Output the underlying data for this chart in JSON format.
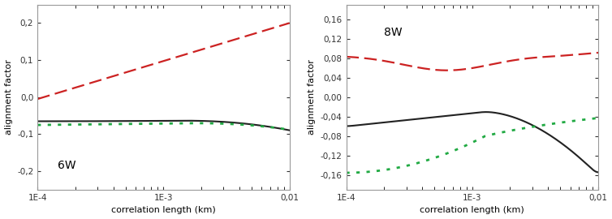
{
  "title_left": "6W",
  "title_right": "8W",
  "xlabel": "correlation length (km)",
  "ylabel": "alignment factor",
  "ylim_left": [
    -0.25,
    0.25
  ],
  "ylim_right": [
    -0.19,
    0.19
  ],
  "yticks_left": [
    -0.2,
    -0.1,
    0.0,
    0.1,
    0.2
  ],
  "ytick_labels_left": [
    "-0,2",
    "-0,1",
    "0,0",
    "0,1",
    "0,2"
  ],
  "yticks_right": [
    -0.16,
    -0.12,
    -0.08,
    -0.04,
    0.0,
    0.04,
    0.08,
    0.12,
    0.16
  ],
  "ytick_labels_right": [
    "-0,16",
    "-0,12",
    "-0,08",
    "-0,04",
    "0,00",
    "0,04",
    "0,08",
    "0,12",
    "0,16"
  ],
  "xtick_labels": [
    "1E-4",
    "1E-3",
    "0,01"
  ],
  "xtick_vals": [
    0.0001,
    0.001,
    0.01
  ],
  "color_dashed": "#cc2222",
  "color_solid": "#222222",
  "color_dotted": "#22aa44",
  "background": "#ffffff"
}
